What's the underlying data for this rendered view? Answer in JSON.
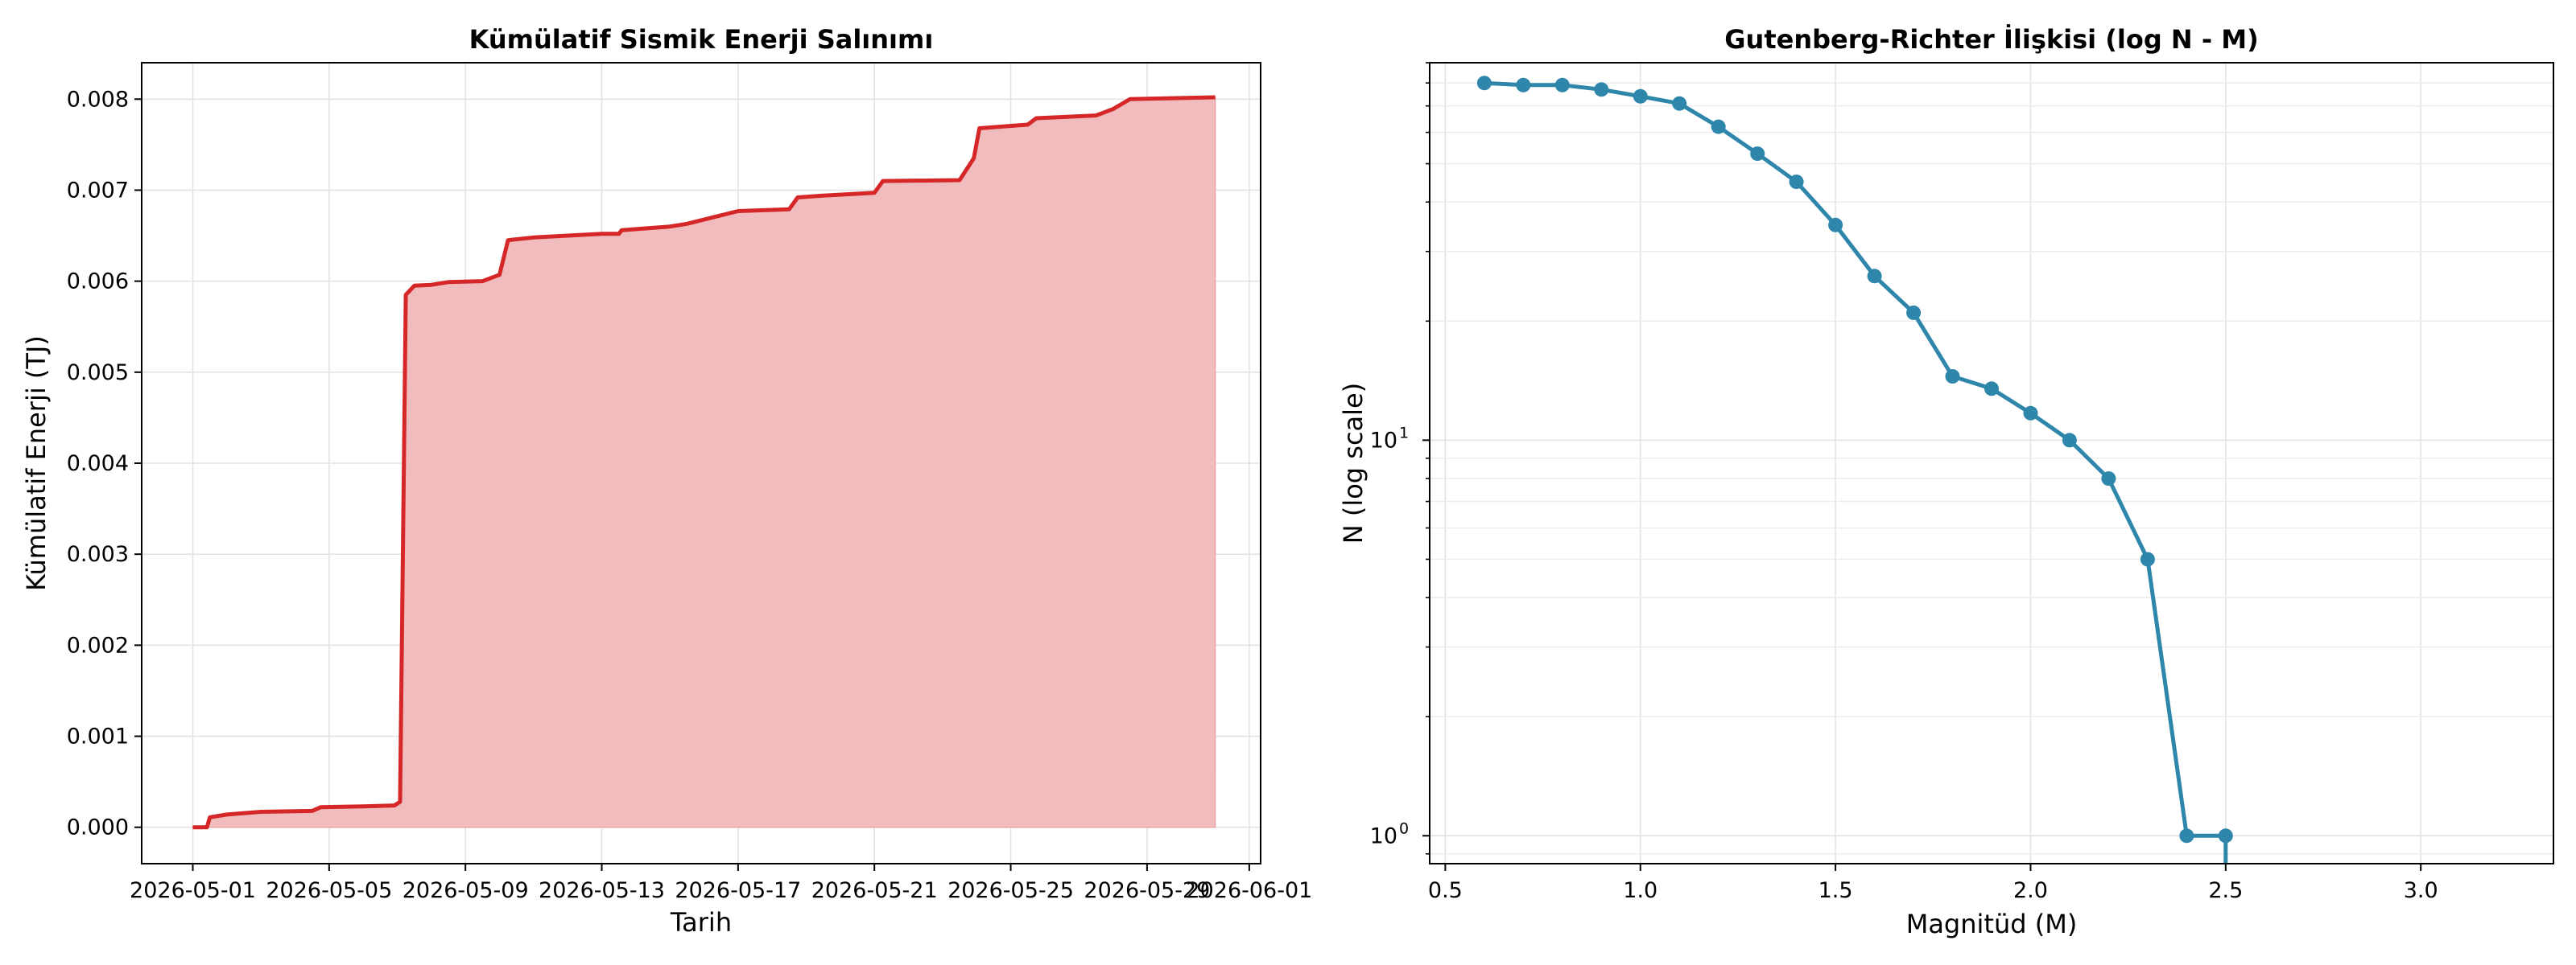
{
  "chart_data": [
    {
      "type": "area",
      "title": "Kümülatif Sismik Enerji Salınımı",
      "xlabel": "Tarih",
      "ylabel": "Kümülatif Enerji (TJ)",
      "x_ticks": [
        "2026-05-01",
        "2026-05-05",
        "2026-05-09",
        "2026-05-13",
        "2026-05-17",
        "2026-05-21",
        "2026-05-25",
        "2026-05-29",
        "2026-06-01"
      ],
      "y_ticks": [
        "0.000",
        "0.001",
        "0.002",
        "0.003",
        "0.004",
        "0.005",
        "0.006",
        "0.007",
        "0.008"
      ],
      "xlim": [
        "2026-04-29T12:00",
        "2026-06-01T08:00"
      ],
      "ylim": [
        -0.0004,
        0.0084
      ],
      "grid": true,
      "series": [
        {
          "color": "#d62728",
          "fill_color": "#f1bcbd",
          "points": [
            [
              "2026-05-01T00:00",
              0.0
            ],
            [
              "2026-05-01T10:00",
              0.0
            ],
            [
              "2026-05-01T12:00",
              0.00011
            ],
            [
              "2026-05-02T00:00",
              0.00014
            ],
            [
              "2026-05-03T00:00",
              0.00017
            ],
            [
              "2026-05-04T12:00",
              0.00018
            ],
            [
              "2026-05-04T18:00",
              0.00022
            ],
            [
              "2026-05-06T00:00",
              0.00023
            ],
            [
              "2026-05-06T22:00",
              0.00024
            ],
            [
              "2026-05-07T02:00",
              0.00028
            ],
            [
              "2026-05-07T06:00",
              0.00585
            ],
            [
              "2026-05-07T12:00",
              0.00595
            ],
            [
              "2026-05-08T00:00",
              0.00596
            ],
            [
              "2026-05-08T12:00",
              0.00599
            ],
            [
              "2026-05-09T12:00",
              0.006
            ],
            [
              "2026-05-10T00:00",
              0.00607
            ],
            [
              "2026-05-10T06:00",
              0.00645
            ],
            [
              "2026-05-11T00:00",
              0.00648
            ],
            [
              "2026-05-12T00:00",
              0.0065
            ],
            [
              "2026-05-13T00:00",
              0.00652
            ],
            [
              "2026-05-13T12:00",
              0.00652
            ],
            [
              "2026-05-13T14:00",
              0.00656
            ],
            [
              "2026-05-15T00:00",
              0.0066
            ],
            [
              "2026-05-15T12:00",
              0.00663
            ],
            [
              "2026-05-17T00:00",
              0.00677
            ],
            [
              "2026-05-18T12:00",
              0.00679
            ],
            [
              "2026-05-18T18:00",
              0.00692
            ],
            [
              "2026-05-19T12:00",
              0.00694
            ],
            [
              "2026-05-21T00:00",
              0.00697
            ],
            [
              "2026-05-21T06:00",
              0.0071
            ],
            [
              "2026-05-23T12:00",
              0.00711
            ],
            [
              "2026-05-23T22:00",
              0.00735
            ],
            [
              "2026-05-24T02:00",
              0.00768
            ],
            [
              "2026-05-25T12:00",
              0.00772
            ],
            [
              "2026-05-25T18:00",
              0.00779
            ],
            [
              "2026-05-27T12:00",
              0.00782
            ],
            [
              "2026-05-28T00:00",
              0.00789
            ],
            [
              "2026-05-28T12:00",
              0.008
            ],
            [
              "2026-05-31T00:00",
              0.00802
            ]
          ]
        }
      ]
    },
    {
      "type": "line",
      "title": "Gutenberg-Richter İlişkisi (log N - M)",
      "xlabel": "Magnitüd (M)",
      "ylabel": "N (log scale)",
      "x_ticks": [
        "0.5",
        "1.0",
        "1.5",
        "2.0",
        "2.5",
        "3.0"
      ],
      "y_ticks": [
        "10^0",
        "10^1"
      ],
      "xlim": [
        0.46,
        3.34
      ],
      "ylim": [
        0.85,
        90
      ],
      "y_scale": "log",
      "grid": true,
      "series": [
        {
          "color": "#2e86ab",
          "x": [
            0.6,
            0.7,
            0.8,
            0.9,
            1.0,
            1.1,
            1.2,
            1.3,
            1.4,
            1.5,
            1.6,
            1.7,
            1.8,
            1.9,
            2.0,
            2.1,
            2.2,
            2.3,
            2.4,
            2.5
          ],
          "y": [
            80,
            79,
            79,
            77,
            74,
            71,
            62,
            53,
            45,
            35,
            26,
            21,
            14.5,
            13.5,
            11.7,
            10,
            8,
            5,
            1,
            1
          ],
          "drop_after_last": true
        }
      ]
    }
  ]
}
